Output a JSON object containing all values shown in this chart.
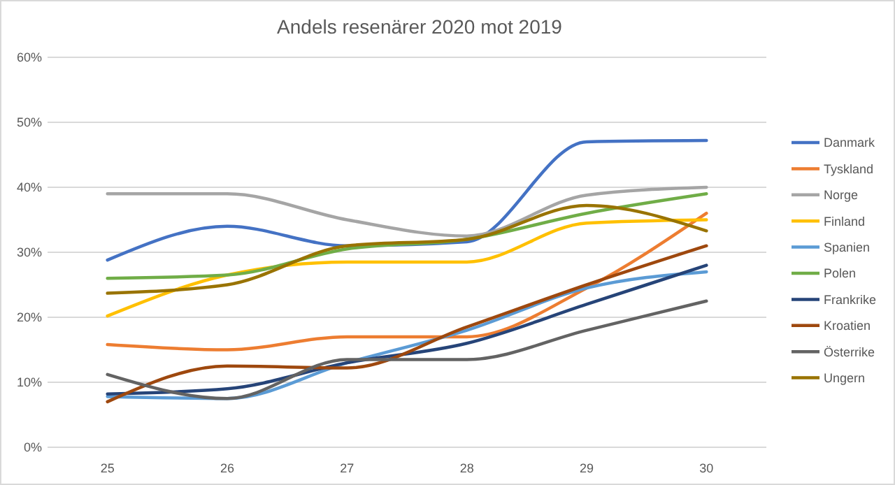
{
  "chart_data": {
    "type": "line",
    "title": "Andels resenärer 2020 mot 2019",
    "categories": [
      "25",
      "26",
      "27",
      "28",
      "29",
      "30"
    ],
    "ylim": [
      0,
      60
    ],
    "yticks": [
      {
        "value": 0,
        "label": "0%"
      },
      {
        "value": 10,
        "label": "10%"
      },
      {
        "value": 20,
        "label": "20%"
      },
      {
        "value": 30,
        "label": "30%"
      },
      {
        "value": 40,
        "label": "40%"
      },
      {
        "value": 50,
        "label": "50%"
      },
      {
        "value": 60,
        "label": "60%"
      }
    ],
    "grid": "y",
    "legend": "right",
    "marker": "none",
    "line_style": "solid",
    "series": [
      {
        "name": "Danmark",
        "color": "#4472c4",
        "values": [
          28.8,
          34,
          31,
          31.6,
          47,
          47.2
        ]
      },
      {
        "name": "Tyskland",
        "color": "#ed7d31",
        "values": [
          15.8,
          15,
          17,
          17,
          24.5,
          36
        ]
      },
      {
        "name": "Norge",
        "color": "#a5a5a5",
        "values": [
          39,
          39,
          35,
          32.5,
          38.8,
          40
        ]
      },
      {
        "name": "Finland",
        "color": "#ffc000",
        "values": [
          20.2,
          26.5,
          28.5,
          28.5,
          34.5,
          35
        ]
      },
      {
        "name": "Spanien",
        "color": "#5b9bd5",
        "values": [
          7.8,
          7.5,
          13,
          18,
          24.5,
          27
        ]
      },
      {
        "name": "Polen",
        "color": "#70ad47",
        "values": [
          26,
          26.5,
          30.5,
          32,
          36,
          39
        ]
      },
      {
        "name": "Frankrike",
        "color": "#264478",
        "values": [
          8.2,
          9,
          13,
          16,
          22,
          28
        ]
      },
      {
        "name": "Kroatien",
        "color": "#9e480e",
        "values": [
          7,
          12.5,
          12.2,
          18.5,
          25,
          31
        ]
      },
      {
        "name": "Österrike",
        "color": "#636363",
        "values": [
          11.2,
          7.5,
          13.5,
          13.5,
          18,
          22.5
        ]
      },
      {
        "name": "Ungern",
        "color": "#997300",
        "values": [
          23.7,
          25,
          31,
          32,
          37.2,
          33.3
        ]
      }
    ]
  }
}
